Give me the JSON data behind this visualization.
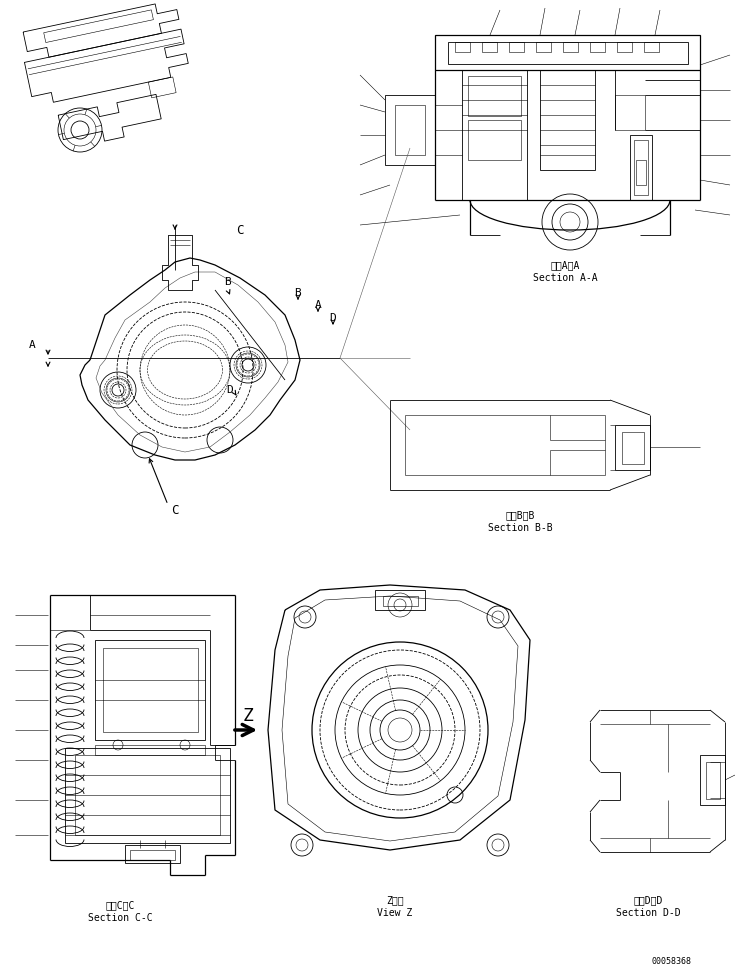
{
  "bg_color": "#ffffff",
  "line_color": "#000000",
  "fig_width": 7.35,
  "fig_height": 9.75,
  "dpi": 100,
  "labels": {
    "section_aa_jp": "断面A－A",
    "section_aa_en": "Section A-A",
    "section_bb_jp": "断面B－B",
    "section_bb_en": "Section B-B",
    "section_cc_jp": "断面C－C",
    "section_cc_en": "Section C-C",
    "section_dd_jp": "断面D－D",
    "section_dd_en": "Section D-D",
    "view_z_jp": "Z　視",
    "view_z_en": "View Z",
    "drawing_no": "00058368"
  },
  "font_size_label": 7,
  "font_size_small": 6,
  "font_family": "monospace"
}
